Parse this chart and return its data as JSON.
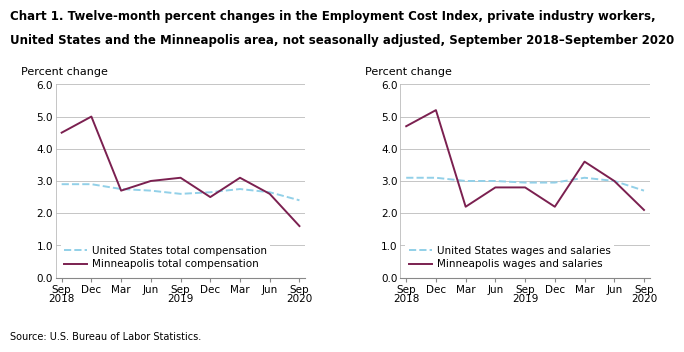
{
  "title_line1": "Chart 1. Twelve-month percent changes in the Employment Cost Index, private industry workers,",
  "title_line2": "United States and the Minneapolis area, not seasonally adjusted, September 2018–September 2020",
  "source": "Source: U.S. Bureau of Labor Statistics.",
  "x_labels": [
    "Sep\n2018",
    "Dec",
    "Mar",
    "Jun",
    "Sep\n2019",
    "Dec",
    "Mar",
    "Jun",
    "Sep\n2020"
  ],
  "ylabel": "Percent change",
  "ylim": [
    0.0,
    6.0
  ],
  "yticks": [
    0.0,
    1.0,
    2.0,
    3.0,
    4.0,
    5.0,
    6.0
  ],
  "left_chart": {
    "us_total_comp": [
      2.9,
      2.9,
      2.75,
      2.7,
      2.6,
      2.65,
      2.75,
      2.65,
      2.4
    ],
    "mpls_total_comp": [
      4.5,
      5.0,
      2.7,
      3.0,
      3.1,
      2.5,
      3.1,
      2.6,
      1.6
    ],
    "legend1": "United States total compensation",
    "legend2": "Minneapolis total compensation"
  },
  "right_chart": {
    "us_wages_salaries": [
      3.1,
      3.1,
      3.0,
      3.0,
      2.95,
      2.95,
      3.1,
      3.0,
      2.7
    ],
    "mpls_wages_salaries": [
      4.7,
      5.2,
      2.2,
      2.8,
      2.8,
      2.2,
      3.6,
      3.0,
      2.1
    ],
    "legend1": "United States wages and salaries",
    "legend2": "Minneapolis wages and salaries"
  },
  "us_line_color": "#92D0E8",
  "mpls_line_color": "#7B2050",
  "us_line_style": "--",
  "mpls_line_style": "-",
  "line_width": 1.4,
  "grid_color": "#bbbbbb",
  "bg_color": "#ffffff",
  "title_fontsize": 8.5,
  "ylabel_fontsize": 8,
  "tick_fontsize": 7.5,
  "legend_fontsize": 7.5,
  "source_fontsize": 7
}
